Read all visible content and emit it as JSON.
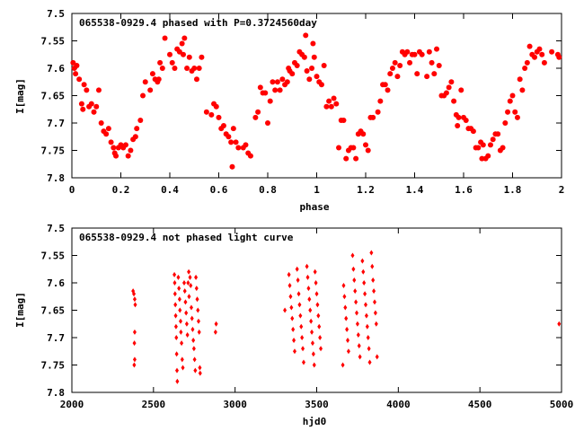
{
  "chart_data": [
    {
      "type": "scatter",
      "title": "065538-0929.4 phased with P=0.3724560day",
      "xlabel": "phase",
      "ylabel": "I[mag]",
      "xlim": [
        0,
        2
      ],
      "ylim": [
        7.8,
        7.5
      ],
      "y_inverted": true,
      "x_ticks": [
        "0",
        "0.2",
        "0.4",
        "0.6",
        "0.8",
        "1",
        "1.2",
        "1.4",
        "1.6",
        "1.8",
        "2"
      ],
      "y_ticks": [
        "7.5",
        "7.55",
        "7.6",
        "7.65",
        "7.7",
        "7.75",
        "7.8"
      ],
      "marker": "filled-circle",
      "color": "#ff0000",
      "points": [
        [
          0.005,
          7.59
        ],
        [
          0.01,
          7.6
        ],
        [
          0.015,
          7.61
        ],
        [
          0.02,
          7.595
        ],
        [
          0.03,
          7.62
        ],
        [
          0.04,
          7.665
        ],
        [
          0.045,
          7.675
        ],
        [
          0.05,
          7.63
        ],
        [
          0.06,
          7.64
        ],
        [
          0.07,
          7.67
        ],
        [
          0.08,
          7.665
        ],
        [
          0.09,
          7.68
        ],
        [
          0.1,
          7.67
        ],
        [
          0.11,
          7.64
        ],
        [
          0.12,
          7.7
        ],
        [
          0.13,
          7.715
        ],
        [
          0.14,
          7.72
        ],
        [
          0.15,
          7.71
        ],
        [
          0.16,
          7.735
        ],
        [
          0.17,
          7.745
        ],
        [
          0.175,
          7.755
        ],
        [
          0.18,
          7.76
        ],
        [
          0.19,
          7.745
        ],
        [
          0.2,
          7.74
        ],
        [
          0.21,
          7.745
        ],
        [
          0.22,
          7.74
        ],
        [
          0.23,
          7.76
        ],
        [
          0.24,
          7.75
        ],
        [
          0.25,
          7.73
        ],
        [
          0.26,
          7.725
        ],
        [
          0.265,
          7.71
        ],
        [
          0.28,
          7.695
        ],
        [
          0.29,
          7.65
        ],
        [
          0.3,
          7.625
        ],
        [
          0.32,
          7.64
        ],
        [
          0.33,
          7.61
        ],
        [
          0.34,
          7.62
        ],
        [
          0.35,
          7.625
        ],
        [
          0.355,
          7.62
        ],
        [
          0.36,
          7.59
        ],
        [
          0.37,
          7.6
        ],
        [
          0.38,
          7.545
        ],
        [
          0.4,
          7.575
        ],
        [
          0.41,
          7.59
        ],
        [
          0.42,
          7.6
        ],
        [
          0.43,
          7.565
        ],
        [
          0.44,
          7.57
        ],
        [
          0.45,
          7.555
        ],
        [
          0.455,
          7.575
        ],
        [
          0.46,
          7.545
        ],
        [
          0.47,
          7.6
        ],
        [
          0.48,
          7.58
        ],
        [
          0.49,
          7.605
        ],
        [
          0.5,
          7.6
        ],
        [
          0.51,
          7.62
        ],
        [
          0.52,
          7.6
        ],
        [
          0.53,
          7.58
        ],
        [
          0.55,
          7.68
        ],
        [
          0.57,
          7.685
        ],
        [
          0.58,
          7.665
        ],
        [
          0.59,
          7.67
        ],
        [
          0.6,
          7.69
        ],
        [
          0.61,
          7.71
        ],
        [
          0.62,
          7.705
        ],
        [
          0.63,
          7.72
        ],
        [
          0.64,
          7.725
        ],
        [
          0.65,
          7.735
        ],
        [
          0.655,
          7.78
        ],
        [
          0.66,
          7.71
        ],
        [
          0.67,
          7.735
        ],
        [
          0.68,
          7.745
        ],
        [
          0.7,
          7.745
        ],
        [
          0.71,
          7.74
        ],
        [
          0.72,
          7.755
        ],
        [
          0.73,
          7.76
        ],
        [
          0.75,
          7.69
        ],
        [
          0.76,
          7.68
        ],
        [
          0.77,
          7.635
        ],
        [
          0.78,
          7.645
        ],
        [
          0.79,
          7.645
        ],
        [
          0.8,
          7.7
        ],
        [
          0.81,
          7.66
        ],
        [
          0.82,
          7.625
        ],
        [
          0.83,
          7.64
        ],
        [
          0.84,
          7.625
        ],
        [
          0.85,
          7.64
        ],
        [
          0.86,
          7.62
        ],
        [
          0.87,
          7.63
        ],
        [
          0.88,
          7.625
        ],
        [
          0.885,
          7.6
        ],
        [
          0.89,
          7.605
        ],
        [
          0.9,
          7.61
        ],
        [
          0.91,
          7.59
        ],
        [
          0.92,
          7.595
        ],
        [
          0.93,
          7.57
        ],
        [
          0.94,
          7.575
        ],
        [
          0.95,
          7.58
        ],
        [
          0.955,
          7.54
        ],
        [
          0.96,
          7.605
        ],
        [
          0.97,
          7.62
        ],
        [
          0.98,
          7.6
        ],
        [
          0.985,
          7.555
        ],
        [
          0.99,
          7.58
        ],
        [
          1.0,
          7.615
        ],
        [
          1.01,
          7.625
        ],
        [
          1.02,
          7.63
        ],
        [
          1.03,
          7.595
        ],
        [
          1.04,
          7.67
        ],
        [
          1.05,
          7.66
        ],
        [
          1.06,
          7.67
        ],
        [
          1.07,
          7.655
        ],
        [
          1.08,
          7.665
        ],
        [
          1.09,
          7.745
        ],
        [
          1.1,
          7.695
        ],
        [
          1.11,
          7.695
        ],
        [
          1.12,
          7.765
        ],
        [
          1.13,
          7.75
        ],
        [
          1.14,
          7.745
        ],
        [
          1.15,
          7.745
        ],
        [
          1.16,
          7.765
        ],
        [
          1.17,
          7.72
        ],
        [
          1.18,
          7.715
        ],
        [
          1.19,
          7.72
        ],
        [
          1.2,
          7.74
        ],
        [
          1.21,
          7.75
        ],
        [
          1.22,
          7.69
        ],
        [
          1.23,
          7.69
        ],
        [
          1.25,
          7.68
        ],
        [
          1.26,
          7.66
        ],
        [
          1.27,
          7.63
        ],
        [
          1.28,
          7.63
        ],
        [
          1.29,
          7.64
        ],
        [
          1.3,
          7.61
        ],
        [
          1.31,
          7.6
        ],
        [
          1.32,
          7.59
        ],
        [
          1.33,
          7.615
        ],
        [
          1.34,
          7.595
        ],
        [
          1.35,
          7.57
        ],
        [
          1.36,
          7.575
        ],
        [
          1.37,
          7.57
        ],
        [
          1.38,
          7.59
        ],
        [
          1.39,
          7.575
        ],
        [
          1.4,
          7.575
        ],
        [
          1.41,
          7.61
        ],
        [
          1.42,
          7.57
        ],
        [
          1.43,
          7.575
        ],
        [
          1.45,
          7.615
        ],
        [
          1.46,
          7.57
        ],
        [
          1.47,
          7.59
        ],
        [
          1.48,
          7.61
        ],
        [
          1.49,
          7.565
        ],
        [
          1.5,
          7.595
        ],
        [
          1.51,
          7.65
        ],
        [
          1.52,
          7.65
        ],
        [
          1.53,
          7.645
        ],
        [
          1.54,
          7.635
        ],
        [
          1.55,
          7.625
        ],
        [
          1.56,
          7.66
        ],
        [
          1.57,
          7.685
        ],
        [
          1.575,
          7.705
        ],
        [
          1.58,
          7.69
        ],
        [
          1.59,
          7.64
        ],
        [
          1.6,
          7.69
        ],
        [
          1.61,
          7.695
        ],
        [
          1.62,
          7.71
        ],
        [
          1.63,
          7.71
        ],
        [
          1.64,
          7.715
        ],
        [
          1.65,
          7.745
        ],
        [
          1.66,
          7.745
        ],
        [
          1.67,
          7.735
        ],
        [
          1.675,
          7.765
        ],
        [
          1.68,
          7.74
        ],
        [
          1.69,
          7.765
        ],
        [
          1.7,
          7.76
        ],
        [
          1.71,
          7.74
        ],
        [
          1.72,
          7.73
        ],
        [
          1.73,
          7.72
        ],
        [
          1.74,
          7.72
        ],
        [
          1.75,
          7.75
        ],
        [
          1.76,
          7.745
        ],
        [
          1.77,
          7.7
        ],
        [
          1.78,
          7.68
        ],
        [
          1.79,
          7.66
        ],
        [
          1.8,
          7.65
        ],
        [
          1.81,
          7.68
        ],
        [
          1.82,
          7.69
        ],
        [
          1.83,
          7.62
        ],
        [
          1.84,
          7.64
        ],
        [
          1.85,
          7.6
        ],
        [
          1.86,
          7.59
        ],
        [
          1.87,
          7.56
        ],
        [
          1.88,
          7.575
        ],
        [
          1.89,
          7.58
        ],
        [
          1.9,
          7.57
        ],
        [
          1.91,
          7.565
        ],
        [
          1.92,
          7.575
        ],
        [
          1.93,
          7.59
        ],
        [
          1.96,
          7.57
        ],
        [
          1.985,
          7.575
        ],
        [
          1.99,
          7.58
        ]
      ]
    },
    {
      "type": "scatter",
      "title": "065538-0929.4 not phased light curve",
      "xlabel": "hjd0",
      "ylabel": "I[mag]",
      "xlim": [
        2000,
        5000
      ],
      "ylim": [
        7.8,
        7.5
      ],
      "y_inverted": true,
      "x_ticks": [
        "2000",
        "2500",
        "3000",
        "3500",
        "4000",
        "4500",
        "5000"
      ],
      "y_ticks": [
        "7.5",
        "7.55",
        "7.6",
        "7.65",
        "7.7",
        "7.75",
        "7.8"
      ],
      "marker": "diamond",
      "color": "#ff0000",
      "points": [
        [
          2375,
          7.615
        ],
        [
          2380,
          7.62
        ],
        [
          2385,
          7.63
        ],
        [
          2388,
          7.64
        ],
        [
          2385,
          7.69
        ],
        [
          2383,
          7.71
        ],
        [
          2382,
          7.75
        ],
        [
          2385,
          7.74
        ],
        [
          2628,
          7.585
        ],
        [
          2630,
          7.6
        ],
        [
          2632,
          7.62
        ],
        [
          2634,
          7.64
        ],
        [
          2636,
          7.66
        ],
        [
          2638,
          7.68
        ],
        [
          2640,
          7.7
        ],
        [
          2642,
          7.73
        ],
        [
          2644,
          7.76
        ],
        [
          2646,
          7.78
        ],
        [
          2652,
          7.59
        ],
        [
          2656,
          7.61
        ],
        [
          2660,
          7.63
        ],
        [
          2662,
          7.65
        ],
        [
          2666,
          7.67
        ],
        [
          2668,
          7.69
        ],
        [
          2672,
          7.71
        ],
        [
          2676,
          7.74
        ],
        [
          2680,
          7.755
        ],
        [
          2688,
          7.6
        ],
        [
          2692,
          7.615
        ],
        [
          2696,
          7.635
        ],
        [
          2700,
          7.655
        ],
        [
          2704,
          7.675
        ],
        [
          2708,
          7.695
        ],
        [
          2712,
          7.6
        ],
        [
          2716,
          7.58
        ],
        [
          2718,
          7.625
        ],
        [
          2724,
          7.59
        ],
        [
          2728,
          7.605
        ],
        [
          2732,
          7.645
        ],
        [
          2736,
          7.665
        ],
        [
          2740,
          7.685
        ],
        [
          2744,
          7.705
        ],
        [
          2748,
          7.72
        ],
        [
          2752,
          7.74
        ],
        [
          2756,
          7.76
        ],
        [
          2760,
          7.59
        ],
        [
          2764,
          7.61
        ],
        [
          2768,
          7.63
        ],
        [
          2772,
          7.65
        ],
        [
          2776,
          7.67
        ],
        [
          2780,
          7.69
        ],
        [
          2784,
          7.755
        ],
        [
          2786,
          7.765
        ],
        [
          2880,
          7.69
        ],
        [
          2884,
          7.675
        ],
        [
          3330,
          7.585
        ],
        [
          3335,
          7.605
        ],
        [
          3340,
          7.625
        ],
        [
          3345,
          7.645
        ],
        [
          3350,
          7.665
        ],
        [
          3355,
          7.685
        ],
        [
          3360,
          7.705
        ],
        [
          3365,
          7.725
        ],
        [
          3380,
          7.575
        ],
        [
          3385,
          7.595
        ],
        [
          3390,
          7.62
        ],
        [
          3395,
          7.64
        ],
        [
          3400,
          7.66
        ],
        [
          3405,
          7.68
        ],
        [
          3410,
          7.7
        ],
        [
          3415,
          7.72
        ],
        [
          3420,
          7.745
        ],
        [
          3440,
          7.57
        ],
        [
          3445,
          7.59
        ],
        [
          3450,
          7.61
        ],
        [
          3455,
          7.63
        ],
        [
          3460,
          7.65
        ],
        [
          3465,
          7.67
        ],
        [
          3470,
          7.69
        ],
        [
          3475,
          7.71
        ],
        [
          3480,
          7.73
        ],
        [
          3485,
          7.75
        ],
        [
          3490,
          7.58
        ],
        [
          3495,
          7.6
        ],
        [
          3500,
          7.62
        ],
        [
          3505,
          7.64
        ],
        [
          3510,
          7.66
        ],
        [
          3515,
          7.68
        ],
        [
          3520,
          7.7
        ],
        [
          3525,
          7.72
        ],
        [
          3305,
          7.65
        ],
        [
          3665,
          7.605
        ],
        [
          3670,
          7.625
        ],
        [
          3675,
          7.645
        ],
        [
          3680,
          7.665
        ],
        [
          3685,
          7.685
        ],
        [
          3690,
          7.705
        ],
        [
          3695,
          7.725
        ],
        [
          3660,
          7.75
        ],
        [
          3720,
          7.55
        ],
        [
          3725,
          7.575
        ],
        [
          3730,
          7.595
        ],
        [
          3735,
          7.615
        ],
        [
          3740,
          7.635
        ],
        [
          3745,
          7.655
        ],
        [
          3750,
          7.675
        ],
        [
          3755,
          7.695
        ],
        [
          3760,
          7.715
        ],
        [
          3765,
          7.735
        ],
        [
          3780,
          7.56
        ],
        [
          3785,
          7.58
        ],
        [
          3790,
          7.6
        ],
        [
          3795,
          7.62
        ],
        [
          3800,
          7.64
        ],
        [
          3805,
          7.66
        ],
        [
          3810,
          7.68
        ],
        [
          3815,
          7.7
        ],
        [
          3820,
          7.72
        ],
        [
          3825,
          7.745
        ],
        [
          3835,
          7.545
        ],
        [
          3840,
          7.57
        ],
        [
          3845,
          7.595
        ],
        [
          3850,
          7.615
        ],
        [
          3855,
          7.635
        ],
        [
          3860,
          7.655
        ],
        [
          3865,
          7.675
        ],
        [
          3870,
          7.735
        ],
        [
          4985,
          7.675
        ]
      ]
    }
  ]
}
